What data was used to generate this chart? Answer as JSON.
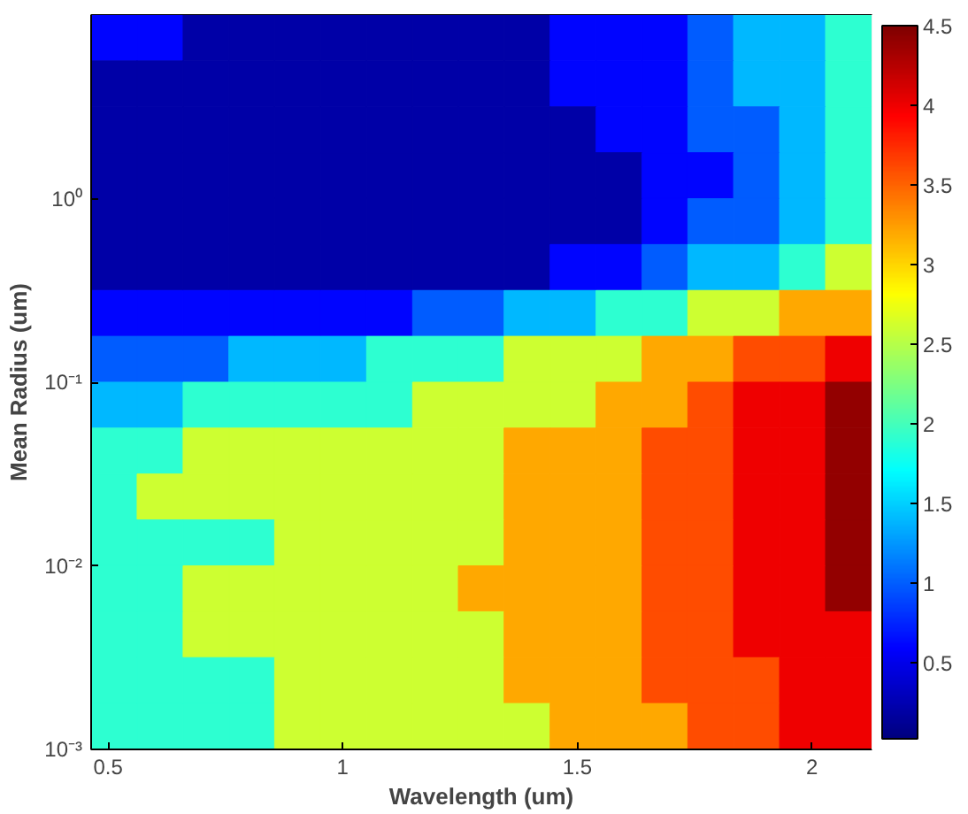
{
  "chart_data": {
    "type": "heatmap",
    "xlabel": "Wavelength (um)",
    "ylabel": "Mean Radius (um)",
    "x": [
      0.513,
      0.611,
      0.709,
      0.806,
      0.904,
      1.002,
      1.1,
      1.198,
      1.295,
      1.393,
      1.491,
      1.589,
      1.687,
      1.784,
      1.882,
      1.98,
      2.078
    ],
    "y": [
      7.499,
      4.217,
      2.371,
      1.334,
      0.7499,
      0.4217,
      0.2371,
      0.1334,
      0.07499,
      0.04217,
      0.02371,
      0.01334,
      0.007499,
      0.004217,
      0.002371,
      0.001334
    ],
    "cells": [
      [
        0.6,
        0.6,
        0.2,
        0.2,
        0.2,
        0.2,
        0.2,
        0.2,
        0.2,
        0.2,
        0.6,
        0.6,
        0.6,
        1.0,
        1.4,
        1.4,
        1.9
      ],
      [
        0.2,
        0.2,
        0.2,
        0.2,
        0.2,
        0.2,
        0.2,
        0.2,
        0.2,
        0.2,
        0.6,
        0.6,
        0.6,
        1.0,
        1.4,
        1.4,
        1.9
      ],
      [
        0.2,
        0.2,
        0.2,
        0.2,
        0.2,
        0.2,
        0.2,
        0.2,
        0.2,
        0.2,
        0.2,
        0.6,
        0.6,
        1.0,
        1.0,
        1.4,
        1.9
      ],
      [
        0.2,
        0.2,
        0.2,
        0.2,
        0.2,
        0.2,
        0.2,
        0.2,
        0.2,
        0.2,
        0.2,
        0.2,
        0.6,
        0.6,
        1.0,
        1.4,
        1.9
      ],
      [
        0.2,
        0.2,
        0.2,
        0.2,
        0.2,
        0.2,
        0.2,
        0.2,
        0.2,
        0.2,
        0.2,
        0.2,
        0.6,
        1.0,
        1.0,
        1.4,
        1.9
      ],
      [
        0.2,
        0.2,
        0.2,
        0.2,
        0.2,
        0.2,
        0.2,
        0.2,
        0.2,
        0.2,
        0.6,
        0.6,
        1.0,
        1.4,
        1.4,
        1.9,
        2.6
      ],
      [
        0.6,
        0.6,
        0.6,
        0.6,
        0.6,
        0.6,
        0.6,
        1.0,
        1.0,
        1.4,
        1.4,
        1.9,
        1.9,
        2.6,
        2.6,
        3.2,
        3.2
      ],
      [
        1.0,
        1.0,
        1.0,
        1.4,
        1.4,
        1.4,
        1.9,
        1.9,
        1.9,
        2.6,
        2.6,
        2.6,
        3.2,
        3.2,
        3.6,
        3.6,
        4.0
      ],
      [
        1.4,
        1.4,
        1.9,
        1.9,
        1.9,
        1.9,
        1.9,
        2.6,
        2.6,
        2.6,
        2.6,
        3.2,
        3.2,
        3.6,
        4.0,
        4.0,
        4.4
      ],
      [
        1.9,
        1.9,
        2.6,
        2.6,
        2.6,
        2.6,
        2.6,
        2.6,
        2.6,
        3.2,
        3.2,
        3.2,
        3.6,
        3.6,
        4.0,
        4.0,
        4.4
      ],
      [
        1.9,
        2.6,
        2.6,
        2.6,
        2.6,
        2.6,
        2.6,
        2.6,
        2.6,
        3.2,
        3.2,
        3.2,
        3.6,
        3.6,
        4.0,
        4.0,
        4.4
      ],
      [
        1.9,
        1.9,
        1.9,
        1.9,
        2.6,
        2.6,
        2.6,
        2.6,
        2.6,
        3.2,
        3.2,
        3.2,
        3.6,
        3.6,
        4.0,
        4.0,
        4.4
      ],
      [
        1.9,
        1.9,
        2.6,
        2.6,
        2.6,
        2.6,
        2.6,
        2.6,
        3.2,
        3.2,
        3.2,
        3.2,
        3.6,
        3.6,
        4.0,
        4.0,
        4.4
      ],
      [
        1.9,
        1.9,
        2.6,
        2.6,
        2.6,
        2.6,
        2.6,
        2.6,
        2.6,
        3.2,
        3.2,
        3.2,
        3.6,
        3.6,
        4.0,
        4.0,
        4.0
      ],
      [
        1.9,
        1.9,
        1.9,
        1.9,
        2.6,
        2.6,
        2.6,
        2.6,
        2.6,
        3.2,
        3.2,
        3.2,
        3.6,
        3.6,
        3.6,
        4.0,
        4.0
      ],
      [
        1.9,
        1.9,
        1.9,
        1.9,
        2.6,
        2.6,
        2.6,
        2.6,
        2.6,
        2.6,
        3.2,
        3.2,
        3.2,
        3.6,
        3.6,
        4.0,
        4.0
      ]
    ],
    "xlim": [
      0.464,
      2.127
    ],
    "ylim": [
      0.001,
      10
    ],
    "log": "y",
    "xticks": [
      0.5,
      1,
      1.5,
      2
    ],
    "yticks": [
      {
        "value": 0.001,
        "label": "10⁻³"
      },
      {
        "value": 0.01,
        "label": "10⁻²"
      },
      {
        "value": 0.1,
        "label": "10⁻¹"
      },
      {
        "value": 1,
        "label": "10⁰"
      }
    ],
    "clim": [
      0.02,
      4.5
    ],
    "cticks": [
      0.5,
      1,
      1.5,
      2,
      2.5,
      3,
      3.5,
      4,
      4.5
    ]
  }
}
